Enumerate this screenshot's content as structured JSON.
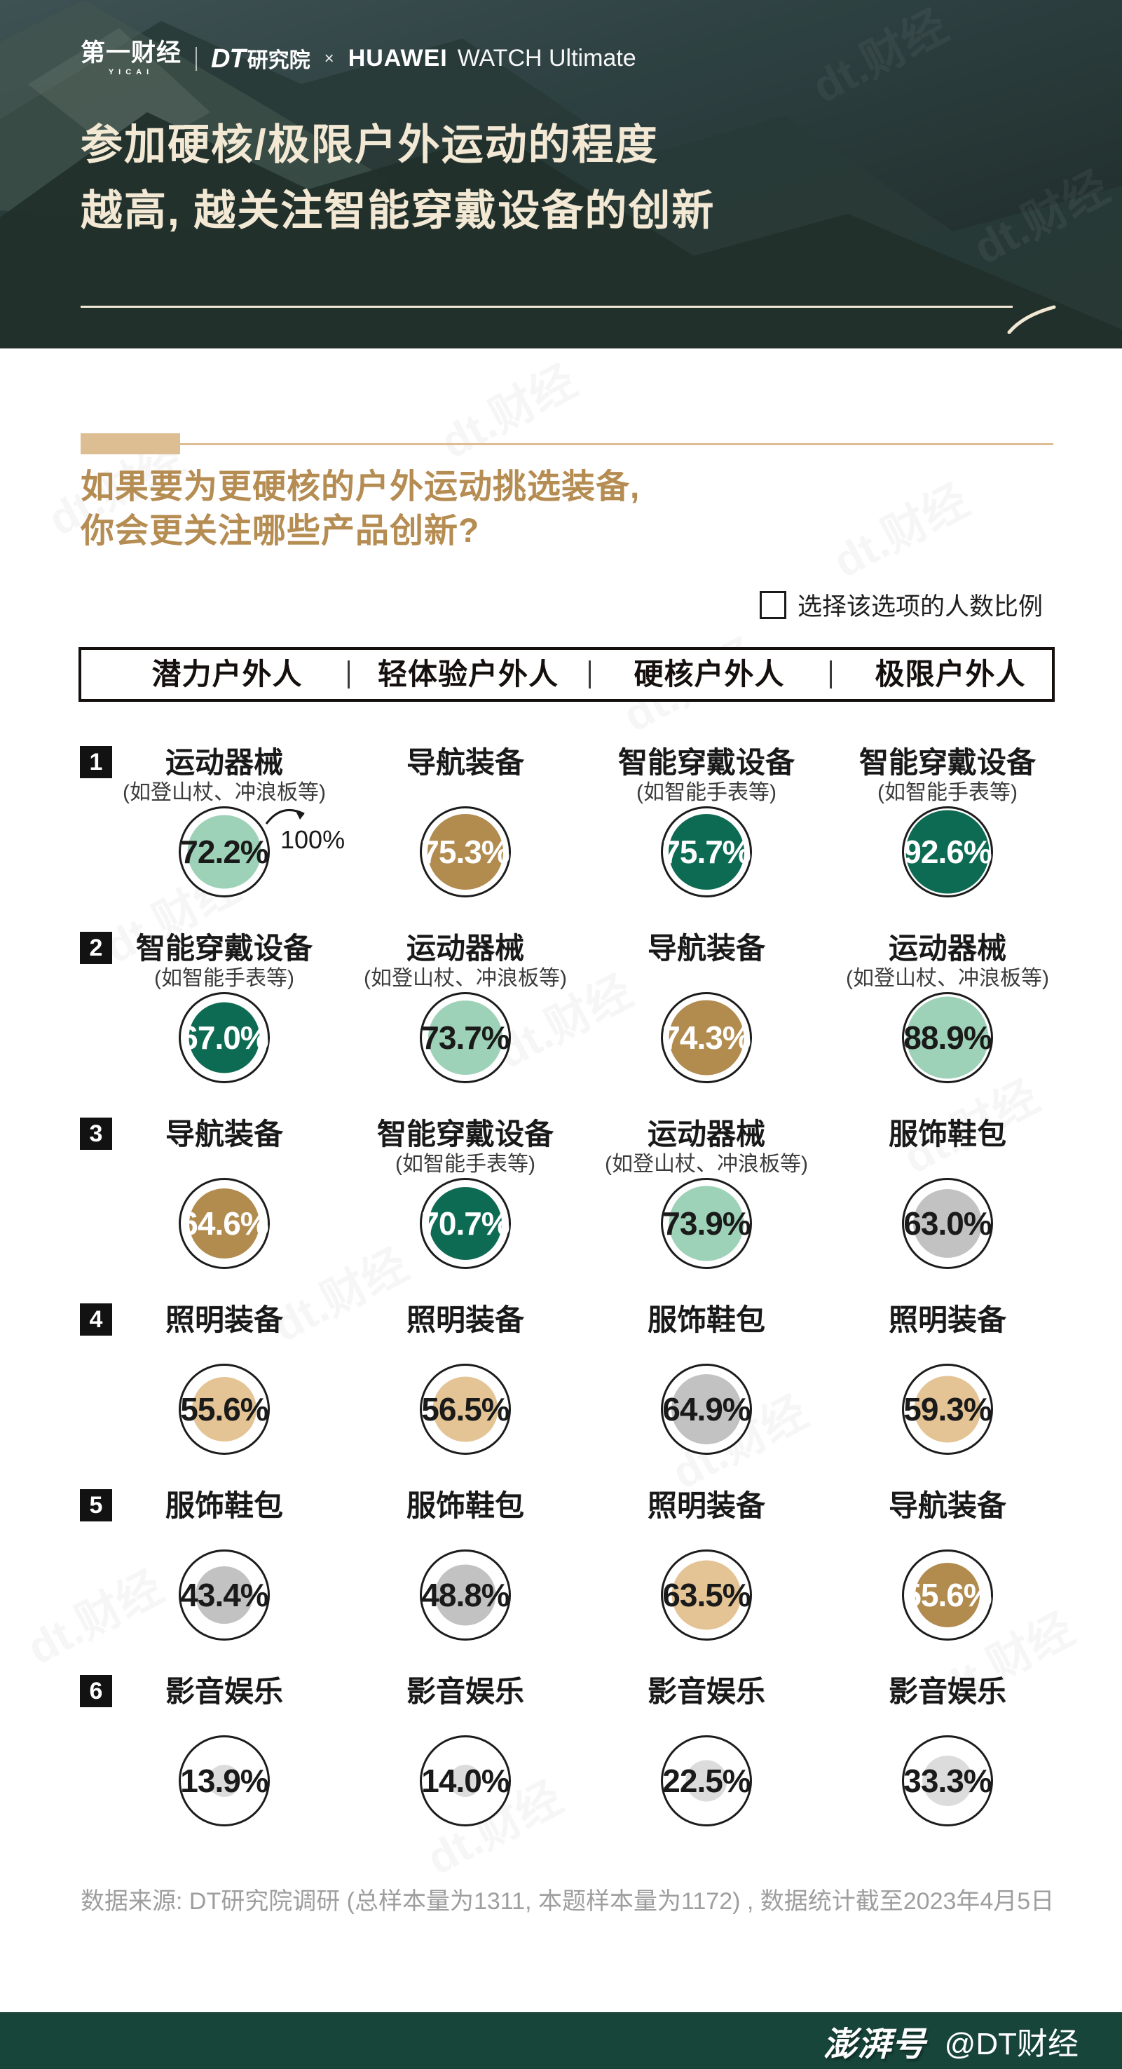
{
  "header": {
    "logo_yicai": "第一财经",
    "logo_yicai_sub": "YICAI",
    "logo_dt_en": "DT",
    "logo_dt_cn": "研究院",
    "logo_cross": "×",
    "logo_huawei": "HUAWEI",
    "logo_watch": "WATCH Ultimate",
    "title_line1": "参加硬核/极限户外运动的程度",
    "title_line2": "越高, 越关注智能穿戴设备的创新"
  },
  "question": {
    "line1": "如果要为更硬核的户外运动挑选装备,",
    "line2": "你会更关注哪些产品创新?"
  },
  "legend": {
    "label": "选择该选项的人数比例"
  },
  "annotation": {
    "label": "100%"
  },
  "watermark": {
    "text": "dt.财经"
  },
  "footer": {
    "source": "数据来源: DT研究院调研 (总样本量为1311, 本题样本量为1172) , 数据统计截至2023年4月5日"
  },
  "bottom_bar": {
    "brand": "澎湃号",
    "handle": "@DT财经"
  },
  "chart_data": {
    "type": "table",
    "title": "参加硬核/极限户外运动的程度越高, 越关注智能穿戴设备的创新",
    "question": "如果要为更硬核的户外运动挑选装备, 你会更关注哪些产品创新?",
    "legend": "选择该选项的人数比例",
    "unit": "%",
    "outer_circle_meaning": "100%",
    "columns": [
      "潜力户外人",
      "轻体验户外人",
      "硬核户外人",
      "极限户外人"
    ],
    "subtitles": {
      "运动器械": "(如登山杖、冲浪板等)",
      "智能穿戴设备": "(如智能手表等)"
    },
    "category_colors": {
      "智能穿戴设备": {
        "fill": "#0E6B53",
        "text": "#FFFFFF"
      },
      "运动器械": {
        "fill": "#9ED2B8",
        "text": "#1A1A1A"
      },
      "导航装备": {
        "fill": "#B28B4F",
        "text": "#FFFFFF"
      },
      "服饰鞋包": {
        "fill": "#C2C2C2",
        "text": "#1A1A1A"
      },
      "照明装备": {
        "fill": "#E4C495",
        "text": "#1A1A1A"
      },
      "影音娱乐": {
        "fill": "#DCDCDC",
        "text": "#1A1A1A"
      }
    },
    "rows": [
      {
        "rank": "1",
        "cells": [
          {
            "label": "运动器械",
            "value": 72.2
          },
          {
            "label": "导航装备",
            "value": 75.3
          },
          {
            "label": "智能穿戴设备",
            "value": 75.7
          },
          {
            "label": "智能穿戴设备",
            "value": 92.6
          }
        ]
      },
      {
        "rank": "2",
        "cells": [
          {
            "label": "智能穿戴设备",
            "value": 67.0
          },
          {
            "label": "运动器械",
            "value": 73.7
          },
          {
            "label": "导航装备",
            "value": 74.3
          },
          {
            "label": "运动器械",
            "value": 88.9
          }
        ]
      },
      {
        "rank": "3",
        "cells": [
          {
            "label": "导航装备",
            "value": 64.6
          },
          {
            "label": "智能穿戴设备",
            "value": 70.7
          },
          {
            "label": "运动器械",
            "value": 73.9
          },
          {
            "label": "服饰鞋包",
            "value": 63.0
          }
        ]
      },
      {
        "rank": "4",
        "cells": [
          {
            "label": "照明装备",
            "value": 55.6
          },
          {
            "label": "照明装备",
            "value": 56.5
          },
          {
            "label": "服饰鞋包",
            "value": 64.9
          },
          {
            "label": "照明装备",
            "value": 59.3
          }
        ]
      },
      {
        "rank": "5",
        "cells": [
          {
            "label": "服饰鞋包",
            "value": 43.4
          },
          {
            "label": "服饰鞋包",
            "value": 48.8
          },
          {
            "label": "照明装备",
            "value": 63.5
          },
          {
            "label": "导航装备",
            "value": 55.6
          }
        ]
      },
      {
        "rank": "6",
        "cells": [
          {
            "label": "影音娱乐",
            "value": 13.9
          },
          {
            "label": "影音娱乐",
            "value": 14.0
          },
          {
            "label": "影音娱乐",
            "value": 22.5
          },
          {
            "label": "影音娱乐",
            "value": 33.3
          }
        ]
      }
    ]
  }
}
